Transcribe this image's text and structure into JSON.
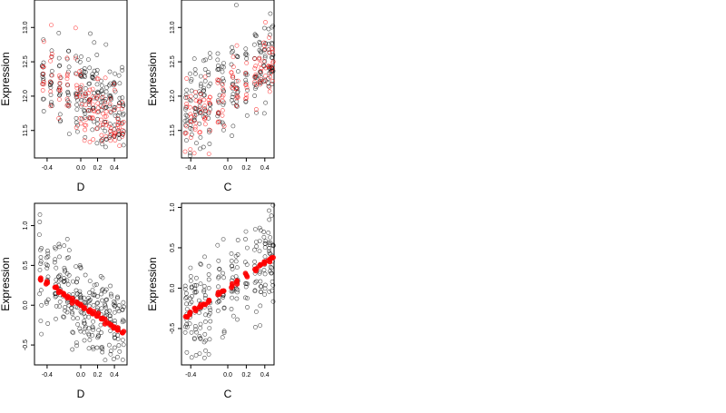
{
  "chart_data": [
    {
      "type": "scatter",
      "xlabel": "D",
      "ylabel": "Expression",
      "xlim": [
        -0.55,
        0.55
      ],
      "ylim": [
        11.1,
        13.4
      ],
      "xticks": [
        -0.4,
        0.0,
        0.2,
        0.4
      ],
      "xtick_labels": [
        "-0.4",
        "0.0",
        "0.2",
        "0.4"
      ],
      "yticks": [
        11.5,
        12.0,
        12.5,
        13.0
      ],
      "ytick_labels": [
        "11.5",
        "12.0",
        "12.5",
        "13.0"
      ],
      "x_groups": [
        -0.45,
        -0.35,
        -0.25,
        -0.15,
        -0.05,
        0.0,
        0.05,
        0.1,
        0.15,
        0.2,
        0.25,
        0.3,
        0.35,
        0.4,
        0.45,
        0.5
      ],
      "series": [
        {
          "color": "#000000",
          "marker": "open-circle",
          "trend": {
            "y_at_xmin": 12.4,
            "y_at_xmax": 11.7
          },
          "spread": 0.35,
          "n_per_group": 14
        },
        {
          "color": "#ff0000",
          "marker": "open-circle",
          "trend": {
            "y_at_xmin": 12.45,
            "y_at_xmax": 11.55
          },
          "spread": 0.25,
          "n_per_group": 8
        }
      ],
      "grid": false
    },
    {
      "type": "scatter",
      "xlabel": "C",
      "ylabel": "Expression",
      "xlim": [
        -0.5,
        0.5
      ],
      "ylim": [
        11.1,
        13.4
      ],
      "xticks": [
        -0.4,
        0.0,
        0.2,
        0.4
      ],
      "xtick_labels": [
        "-0.4",
        "0.0",
        "0.2",
        "0.4"
      ],
      "yticks": [
        11.5,
        12.0,
        12.5,
        13.0
      ],
      "ytick_labels": [
        "11.5",
        "12.0",
        "12.5",
        "13.0"
      ],
      "x_groups": [
        -0.45,
        -0.4,
        -0.35,
        -0.3,
        -0.25,
        -0.2,
        -0.1,
        -0.05,
        0.05,
        0.1,
        0.2,
        0.3,
        0.35,
        0.4,
        0.45,
        0.48
      ],
      "series": [
        {
          "color": "#000000",
          "marker": "open-circle",
          "trend": {
            "y_at_xmin": 11.7,
            "y_at_xmax": 12.5
          },
          "spread": 0.35,
          "n_per_group": 14
        },
        {
          "color": "#ff0000",
          "marker": "open-circle",
          "trend": {
            "y_at_xmin": 11.6,
            "y_at_xmax": 12.5
          },
          "spread": 0.25,
          "n_per_group": 8
        }
      ],
      "grid": false
    },
    {
      "type": "scatter",
      "xlabel": "D",
      "ylabel": "Expression",
      "xlim": [
        -0.55,
        0.55
      ],
      "ylim": [
        -0.75,
        1.28
      ],
      "xticks": [
        -0.4,
        0.0,
        0.2,
        0.4
      ],
      "xtick_labels": [
        "-0.4",
        "0.0",
        "0.2",
        "0.4"
      ],
      "yticks": [
        -0.5,
        0.0,
        0.5,
        1.0
      ],
      "ytick_labels": [
        "-0.5",
        "0.0",
        "0.5",
        "1.0"
      ],
      "x_groups": [
        -0.48,
        -0.4,
        -0.3,
        -0.25,
        -0.2,
        -0.15,
        -0.1,
        -0.05,
        0.0,
        0.05,
        0.1,
        0.15,
        0.2,
        0.25,
        0.3,
        0.35,
        0.4,
        0.45,
        0.5
      ],
      "series": [
        {
          "color": "#000000",
          "marker": "open-circle",
          "trend": {
            "y_at_xmin": 0.38,
            "y_at_xmax": -0.38
          },
          "spread": 0.3,
          "n_per_group": 14
        },
        {
          "color": "#ff0000",
          "marker": "filled-circle",
          "trend": {
            "y_at_xmin": 0.38,
            "y_at_xmax": -0.38
          },
          "spread": 0.015,
          "n_per_group": 3
        }
      ],
      "grid": false
    },
    {
      "type": "scatter",
      "xlabel": "C",
      "ylabel": "Expression",
      "xlim": [
        -0.5,
        0.5
      ],
      "ylim": [
        -0.95,
        1.05
      ],
      "xticks": [
        -0.4,
        0.0,
        0.2,
        0.4
      ],
      "xtick_labels": [
        "-0.4",
        "0.0",
        "0.2",
        "0.4"
      ],
      "yticks": [
        -0.5,
        0.0,
        0.5,
        1.0
      ],
      "ytick_labels": [
        "-0.5",
        "0.0",
        "0.5",
        "1.0"
      ],
      "x_groups": [
        -0.45,
        -0.4,
        -0.35,
        -0.3,
        -0.25,
        -0.2,
        -0.1,
        -0.05,
        0.05,
        0.1,
        0.2,
        0.3,
        0.35,
        0.4,
        0.45,
        0.48
      ],
      "series": [
        {
          "color": "#000000",
          "marker": "open-circle",
          "trend": {
            "y_at_xmin": -0.38,
            "y_at_xmax": 0.38
          },
          "spread": 0.3,
          "n_per_group": 14
        },
        {
          "color": "#ff0000",
          "marker": "filled-circle",
          "trend": {
            "y_at_xmin": -0.38,
            "y_at_xmax": 0.38
          },
          "spread": 0.015,
          "n_per_group": 3
        }
      ],
      "grid": false
    }
  ]
}
